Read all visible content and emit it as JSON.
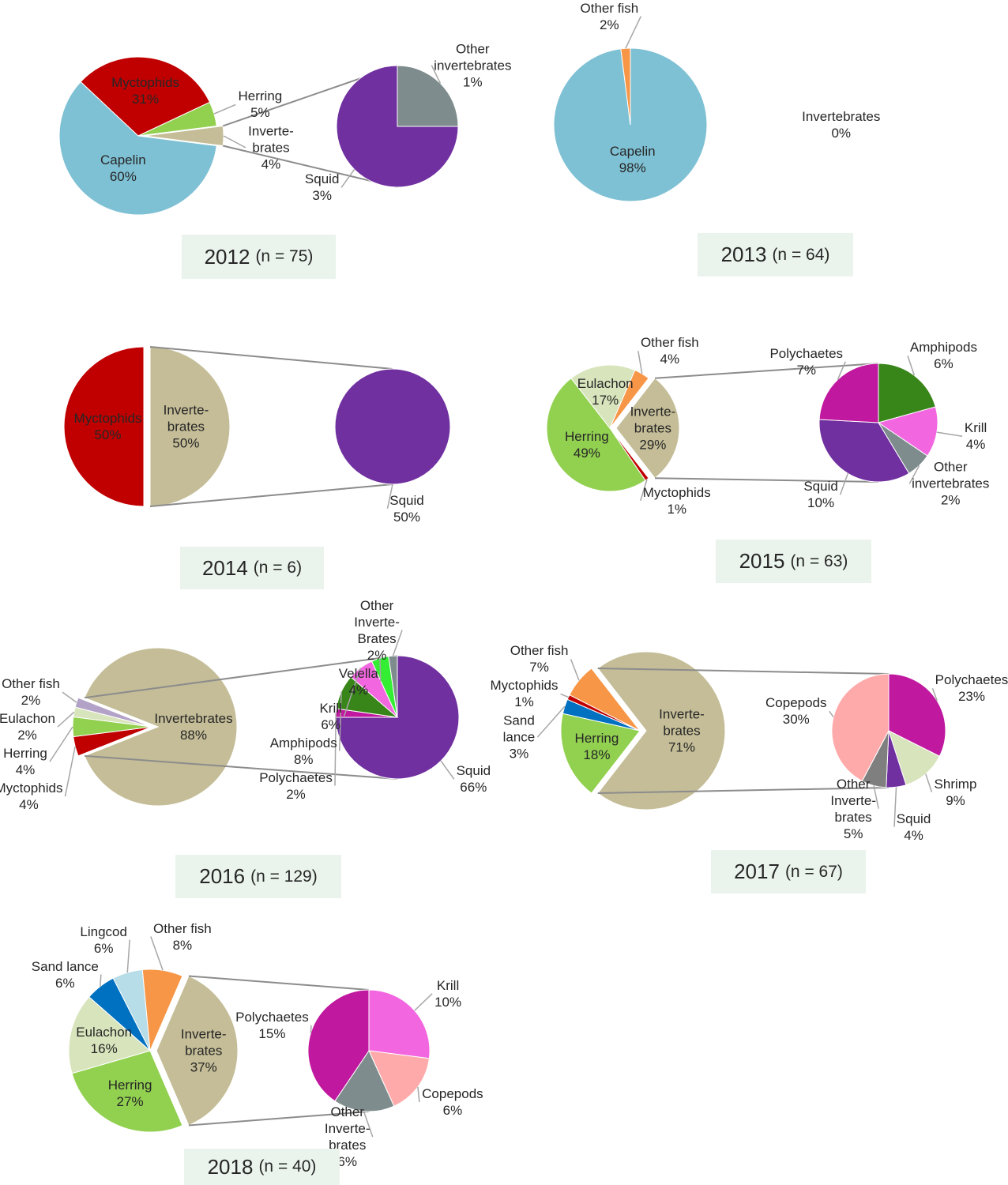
{
  "chart_data": [
    {
      "type": "pie-of-pie",
      "title": "2012",
      "subtitle": "(n = 75)",
      "categories": [
        "Inverte-\nbrates",
        "Capelin",
        "Myctophids",
        "Herring"
      ],
      "values": [
        4,
        60,
        31,
        5
      ],
      "value_labels": [
        "4%",
        "60%",
        "31%",
        "5%"
      ],
      "colors": [
        "#c4bd97",
        "#7fc1d4",
        "#c00000",
        "#92d050"
      ],
      "breakout": {
        "categories": [
          "Other\ninvertebrates",
          "Squid"
        ],
        "values": [
          1,
          3
        ],
        "value_labels": [
          "1%",
          "3%"
        ],
        "colors": [
          "#7f8c8d",
          "#7030a0"
        ]
      }
    },
    {
      "type": "pie",
      "title": "2013",
      "subtitle": "(n = 64)",
      "categories": [
        "Capelin",
        "Other fish",
        "Invertebrates"
      ],
      "values": [
        98,
        2,
        0
      ],
      "value_labels": [
        "98%",
        "2%",
        "0%"
      ],
      "colors": [
        "#7fc1d4",
        "#f79646",
        "#c4bd97"
      ]
    },
    {
      "type": "pie-of-pie",
      "title": "2014",
      "subtitle": "(n = 6)",
      "categories": [
        "Inverte-\nbrates",
        "Myctophids"
      ],
      "values": [
        50,
        50
      ],
      "value_labels": [
        "50%",
        "50%"
      ],
      "colors": [
        "#c4bd97",
        "#c00000"
      ],
      "breakout": {
        "categories": [
          "Squid"
        ],
        "values": [
          50
        ],
        "value_labels": [
          "50%"
        ],
        "colors": [
          "#7030a0"
        ]
      }
    },
    {
      "type": "pie-of-pie",
      "title": "2015",
      "subtitle": "(n = 63)",
      "categories": [
        "Inverte-\nbrates",
        "Myctophids",
        "Herring",
        "Eulachon",
        "Other fish"
      ],
      "values": [
        29,
        1,
        49,
        17,
        4
      ],
      "value_labels": [
        "29%",
        "1%",
        "49%",
        "17%",
        "4%"
      ],
      "colors": [
        "#c4bd97",
        "#c00000",
        "#92d050",
        "#d8e4bc",
        "#f79646"
      ],
      "breakout": {
        "categories": [
          "Amphipods",
          "Krill",
          "Other\ninvertebrates",
          "Squid",
          "Polychaetes"
        ],
        "values": [
          6,
          4,
          2,
          10,
          7
        ],
        "value_labels": [
          "6%",
          "4%",
          "2%",
          "10%",
          "7%"
        ],
        "colors": [
          "#38861a",
          "#f266e0",
          "#7f8c8d",
          "#7030a0",
          "#c0189f"
        ]
      }
    },
    {
      "type": "pie-of-pie",
      "title": "2016",
      "subtitle": "(n = 129)",
      "categories": [
        "Invertebrates",
        "Myctophids",
        "Herring",
        "Eulachon",
        "Other fish"
      ],
      "values": [
        88,
        4,
        4,
        2,
        2
      ],
      "value_labels": [
        "88%",
        "4%",
        "4%",
        "2%",
        "2%"
      ],
      "colors": [
        "#c4bd97",
        "#c00000",
        "#92d050",
        "#d8e4bc",
        "#b3a2c7"
      ],
      "breakout": {
        "categories": [
          "Squid",
          "Polychaetes",
          "Amphipods",
          "Krill",
          "Velella",
          "Other\nInverte-\nBrates"
        ],
        "values": [
          66,
          2,
          8,
          6,
          4,
          2
        ],
        "value_labels": [
          "66%",
          "2%",
          "8%",
          "6%",
          "4%",
          "2%"
        ],
        "colors": [
          "#7030a0",
          "#c0189f",
          "#38861a",
          "#f266e0",
          "#33ee33",
          "#7f8c8d"
        ]
      }
    },
    {
      "type": "pie-of-pie",
      "title": "2017",
      "subtitle": "(n = 67)",
      "categories": [
        "Inverte-\nbrates",
        "Herring",
        "Sand\nlance",
        "Myctophids",
        "Other fish"
      ],
      "values": [
        71,
        18,
        3,
        1,
        7
      ],
      "value_labels": [
        "71%",
        "18%",
        "3%",
        "1%",
        "7%"
      ],
      "colors": [
        "#c4bd97",
        "#92d050",
        "#0070c0",
        "#c00000",
        "#f79646"
      ],
      "breakout": {
        "categories": [
          "Polychaetes",
          "Shrimp",
          "Squid",
          "Other\nInverte-\nbrates",
          "Copepods"
        ],
        "values": [
          23,
          9,
          4,
          5,
          30
        ],
        "value_labels": [
          "23%",
          "9%",
          "4%",
          "5%",
          "30%"
        ],
        "colors": [
          "#c0189f",
          "#d8e4bc",
          "#7030a0",
          "#7f7f7f",
          "#ffaaaa"
        ]
      }
    },
    {
      "type": "pie-of-pie",
      "title": "2018",
      "subtitle": "(n = 40)",
      "categories": [
        "Inverte-\nbrates",
        "Herring",
        "Eulachon",
        "Sand lance",
        "Lingcod",
        "Other fish"
      ],
      "values": [
        37,
        27,
        16,
        6,
        6,
        8
      ],
      "value_labels": [
        "37%",
        "27%",
        "16%",
        "6%",
        "6%",
        "8%"
      ],
      "colors": [
        "#c4bd97",
        "#92d050",
        "#d8e4bc",
        "#0070c0",
        "#b7dde8",
        "#f79646"
      ],
      "breakout": {
        "categories": [
          "Krill",
          "Copepods",
          "Other\nInverte-\nbrates",
          "Polychaetes"
        ],
        "values": [
          10,
          6,
          6,
          15
        ],
        "value_labels": [
          "10%",
          "6%",
          "6%",
          "15%"
        ],
        "colors": [
          "#f266e0",
          "#ffaaaa",
          "#7f8c8d",
          "#c0189f"
        ]
      }
    }
  ]
}
